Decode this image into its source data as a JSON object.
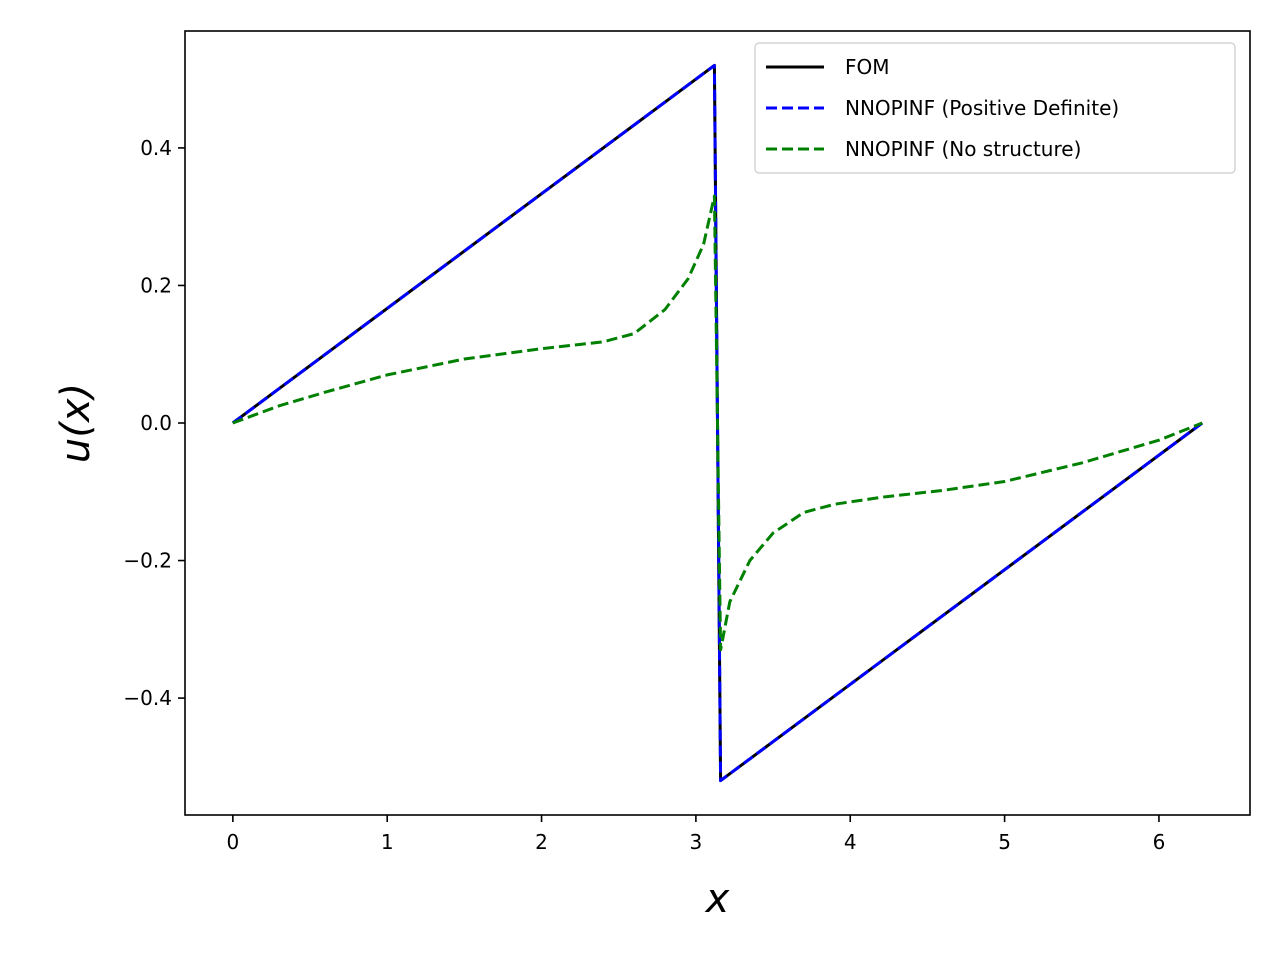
{
  "chart_data": {
    "type": "line",
    "xlabel": "x",
    "ylabel": "u(x)",
    "xlim": [
      -0.31,
      6.59
    ],
    "ylim": [
      -0.57,
      0.57
    ],
    "xticks": [
      0,
      1,
      2,
      3,
      4,
      5,
      6
    ],
    "xtick_labels": [
      "0",
      "1",
      "2",
      "3",
      "4",
      "5",
      "6"
    ],
    "yticks": [
      -0.4,
      -0.2,
      0.0,
      0.2,
      0.4
    ],
    "ytick_labels": [
      "−0.4",
      "−0.2",
      "0.0",
      "0.2",
      "0.4"
    ],
    "grid": false,
    "legend_position": "top-right",
    "series": [
      {
        "name": "FOM",
        "color": "#000000",
        "dash": "solid",
        "x": [
          0,
          3.12,
          3.16,
          6.28
        ],
        "y": [
          0,
          0.52,
          -0.52,
          0
        ]
      },
      {
        "name": "NNOPINF (Positive Definite)",
        "color": "#0000ff",
        "dash": "dashed",
        "x": [
          0,
          3.12,
          3.16,
          6.28
        ],
        "y": [
          0,
          0.52,
          -0.52,
          0
        ]
      },
      {
        "name": "NNOPINF (No structure)",
        "color": "#008000",
        "dash": "dashed",
        "x": [
          0,
          0.3,
          0.6,
          1.0,
          1.5,
          2.0,
          2.4,
          2.6,
          2.8,
          2.95,
          3.05,
          3.12,
          3.16,
          3.22,
          3.35,
          3.5,
          3.7,
          3.9,
          4.2,
          4.6,
          5.0,
          5.5,
          6.0,
          6.28
        ],
        "y": [
          0,
          0.025,
          0.045,
          0.07,
          0.093,
          0.108,
          0.118,
          0.13,
          0.165,
          0.21,
          0.26,
          0.33,
          -0.33,
          -0.26,
          -0.2,
          -0.16,
          -0.13,
          -0.118,
          -0.108,
          -0.098,
          -0.085,
          -0.058,
          -0.025,
          0
        ]
      }
    ]
  }
}
